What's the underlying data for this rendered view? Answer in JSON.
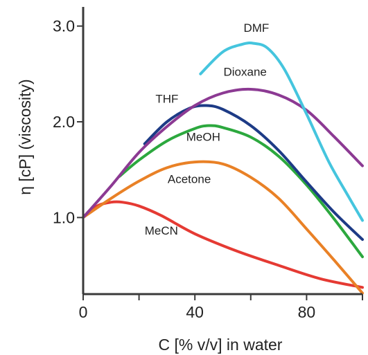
{
  "chart_data": {
    "type": "line",
    "title": "",
    "xlabel": "C [% v/v] in water",
    "ylabel": "η [cP] (viscosity)",
    "xlim": [
      0,
      100
    ],
    "ylim": [
      0.2,
      3.2
    ],
    "x_ticks": [
      0,
      20,
      40,
      60,
      80,
      100
    ],
    "x_tick_labels": [
      "0",
      "",
      "40",
      "",
      "80",
      ""
    ],
    "y_ticks": [
      1.0,
      2.0,
      3.0
    ],
    "y_tick_labels": [
      "1.0",
      "2.0",
      "3.0"
    ],
    "grid": false,
    "legend": "none",
    "series": [
      {
        "name": "MeCN",
        "color": "#e53a33",
        "x": [
          0,
          5,
          10,
          14,
          20,
          28,
          40,
          55,
          70,
          85,
          100
        ],
        "y": [
          1.0,
          1.12,
          1.16,
          1.16,
          1.12,
          1.02,
          0.83,
          0.65,
          0.5,
          0.36,
          0.27
        ],
        "label_at": [
          28,
          0.82
        ]
      },
      {
        "name": "Acetone",
        "color": "#e98126",
        "x": [
          0,
          10,
          20,
          30,
          40,
          50,
          60,
          70,
          80,
          90,
          100
        ],
        "y": [
          1.0,
          1.2,
          1.38,
          1.52,
          1.58,
          1.56,
          1.42,
          1.2,
          0.88,
          0.55,
          0.21
        ],
        "label_at": [
          38,
          1.36
        ]
      },
      {
        "name": "MeOH",
        "color": "#2ca83e",
        "x": [
          13,
          20,
          30,
          40,
          45,
          50,
          60,
          70,
          80,
          90,
          100
        ],
        "y": [
          1.43,
          1.6,
          1.8,
          1.93,
          1.96,
          1.94,
          1.84,
          1.64,
          1.34,
          0.98,
          0.59
        ],
        "label_at": [
          43,
          1.8
        ]
      },
      {
        "name": "THF",
        "color": "#1d3b86",
        "x": [
          22,
          30,
          38,
          44,
          50,
          60,
          70,
          80,
          90,
          100
        ],
        "y": [
          1.77,
          2.0,
          2.14,
          2.17,
          2.13,
          1.96,
          1.7,
          1.37,
          1.05,
          0.77
        ],
        "label_at": [
          30,
          2.2
        ]
      },
      {
        "name": "Dioxane",
        "color": "#8c3a93",
        "x": [
          0,
          10,
          20,
          30,
          40,
          50,
          60,
          70,
          80,
          90,
          100
        ],
        "y": [
          1.0,
          1.33,
          1.68,
          1.95,
          2.17,
          2.3,
          2.34,
          2.28,
          2.12,
          1.84,
          1.54
        ],
        "label_at": [
          58,
          2.48
        ]
      },
      {
        "name": "DMF",
        "color": "#45c5de",
        "x": [
          42,
          50,
          57,
          61,
          66,
          72,
          80,
          88,
          95,
          100
        ],
        "y": [
          2.5,
          2.73,
          2.81,
          2.82,
          2.77,
          2.55,
          2.08,
          1.58,
          1.22,
          0.97
        ],
        "label_at": [
          62,
          2.94
        ]
      }
    ]
  }
}
